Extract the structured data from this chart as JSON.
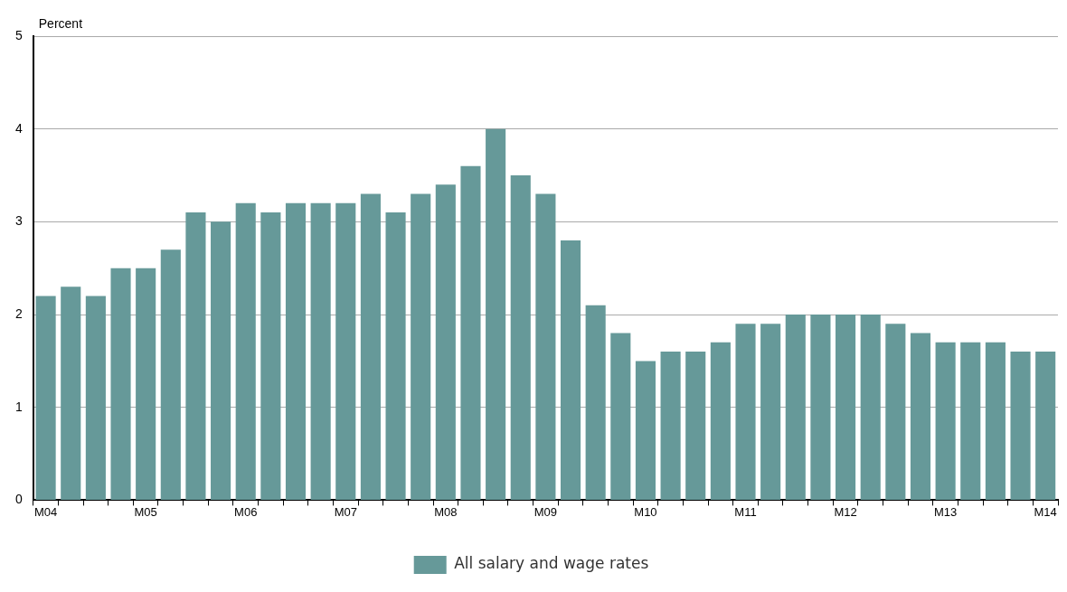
{
  "chart_data": {
    "type": "bar",
    "ylabel": "Percent",
    "categories": [
      "M04",
      null,
      null,
      null,
      "M05",
      null,
      null,
      null,
      "M06",
      null,
      null,
      null,
      "M07",
      null,
      null,
      null,
      "M08",
      null,
      null,
      null,
      "M09",
      null,
      null,
      null,
      "M10",
      null,
      null,
      null,
      "M11",
      null,
      null,
      null,
      "M12",
      null,
      null,
      null,
      "M13",
      null,
      null,
      null,
      "M14"
    ],
    "series": [
      {
        "name": "All salary and wage rates",
        "color": "#669999",
        "values": [
          2.2,
          2.3,
          2.2,
          2.5,
          2.5,
          2.7,
          3.1,
          3.0,
          3.2,
          3.1,
          3.2,
          3.2,
          3.2,
          3.3,
          3.1,
          3.3,
          3.4,
          3.6,
          4.0,
          3.5,
          3.3,
          2.8,
          2.1,
          1.8,
          1.5,
          1.6,
          1.6,
          1.7,
          1.9,
          1.9,
          2.0,
          2.0,
          2.0,
          2.0,
          1.9,
          1.8,
          1.7,
          1.7,
          1.7,
          1.6,
          1.6
        ]
      }
    ],
    "ylim": [
      0,
      5
    ],
    "yticks": [
      0,
      1,
      2,
      3,
      4,
      5
    ],
    "grid": "y",
    "legend": "bottom"
  }
}
